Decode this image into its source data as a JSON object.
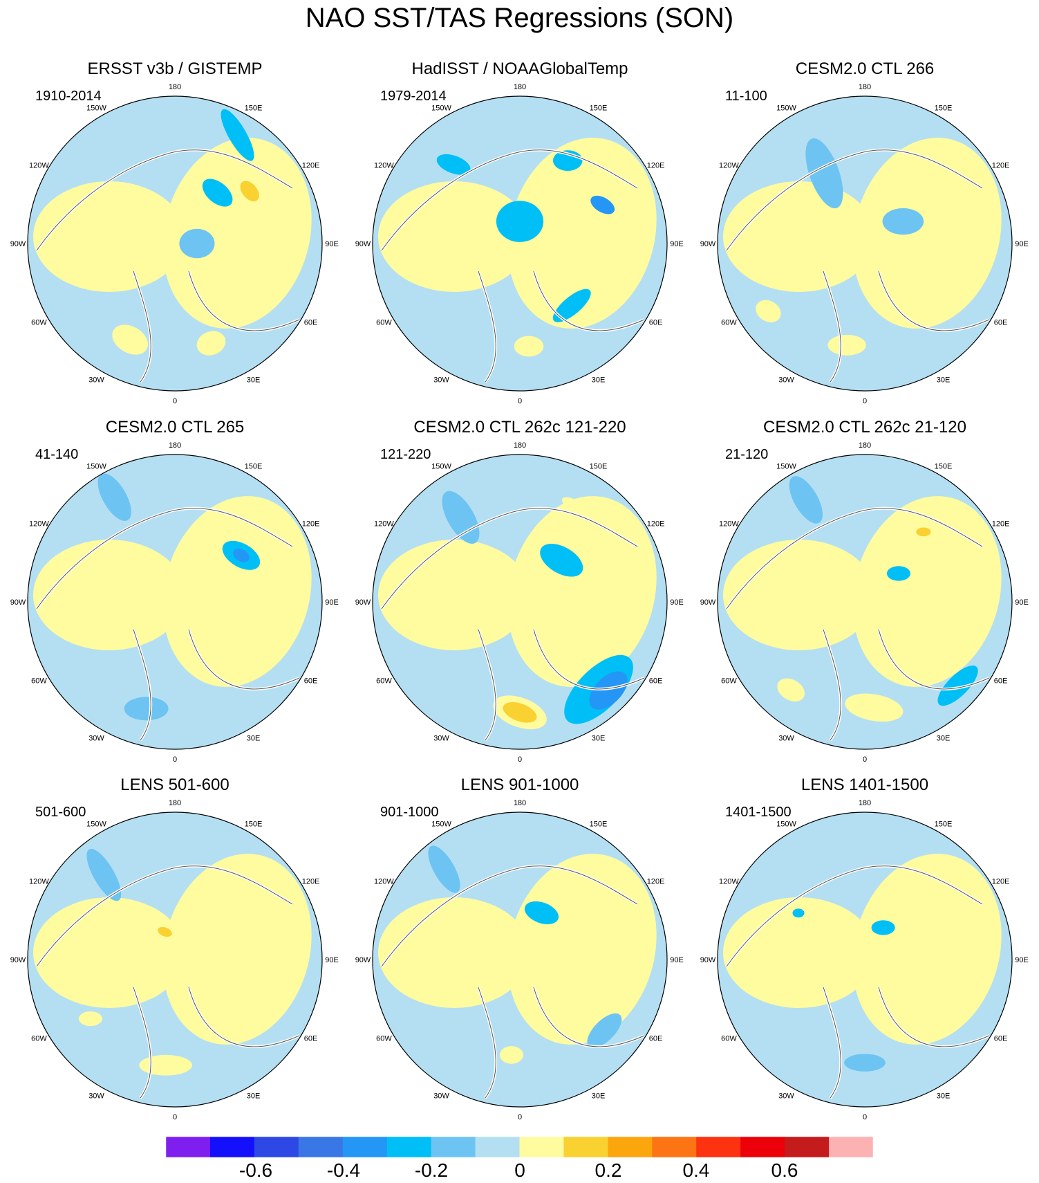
{
  "title": "NAO SST/TAS Regressions (SON)",
  "longitude_labels": [
    "180",
    "150E",
    "120E",
    "90E",
    "60E",
    "30E",
    "0",
    "30W",
    "60W",
    "90W",
    "120W",
    "150W"
  ],
  "panels": [
    {
      "title": "ERSST v3b / GISTEMP",
      "period": "1910-2014",
      "blobs": [
        {
          "r": 0.72,
          "angle": 155,
          "rx": 0.13,
          "ry": 0.09,
          "rot": 30,
          "level": 8
        },
        {
          "r": 0.72,
          "angle": 200,
          "rx": 0.1,
          "ry": 0.08,
          "rot": -20,
          "level": 8
        },
        {
          "r": 0.62,
          "angle": 305,
          "rx": 0.16,
          "ry": 0.1,
          "rot": 50,
          "level": 8
        },
        {
          "r": 0.62,
          "angle": 305,
          "rx": 0.08,
          "ry": 0.05,
          "rot": 50,
          "level": 9
        },
        {
          "r": 0.45,
          "angle": 320,
          "rx": 0.12,
          "ry": 0.07,
          "rot": 40,
          "level": 5
        },
        {
          "r": 0.85,
          "angle": 330,
          "rx": 0.2,
          "ry": 0.06,
          "rot": 60,
          "level": 5
        },
        {
          "r": 0.15,
          "angle": 270,
          "rx": 0.12,
          "ry": 0.1,
          "rot": 0,
          "level": 6
        }
      ]
    },
    {
      "title": "HadISST / NOAAGlobalTemp",
      "period": "1979-2014",
      "blobs": [
        {
          "r": 0.7,
          "angle": 185,
          "rx": 0.1,
          "ry": 0.07,
          "rot": 0,
          "level": 8
        },
        {
          "r": 0.55,
          "angle": 220,
          "rx": 0.16,
          "ry": 0.06,
          "rot": -40,
          "level": 5
        },
        {
          "r": 0.15,
          "angle": 0,
          "rx": 0.16,
          "ry": 0.14,
          "rot": 0,
          "level": 5
        },
        {
          "r": 0.62,
          "angle": 295,
          "rx": 0.09,
          "ry": 0.05,
          "rot": 30,
          "level": 4
        },
        {
          "r": 0.65,
          "angle": 330,
          "rx": 0.1,
          "ry": 0.07,
          "rot": 0,
          "level": 5
        },
        {
          "r": 0.7,
          "angle": 40,
          "rx": 0.12,
          "ry": 0.06,
          "rot": 20,
          "level": 5
        },
        {
          "r": 0.35,
          "angle": 60,
          "rx": 0.05,
          "ry": 0.04,
          "rot": 0,
          "level": 8
        }
      ]
    },
    {
      "title": "CESM2.0 CTL 266",
      "period": "11-100",
      "blobs": [
        {
          "r": 0.7,
          "angle": 170,
          "rx": 0.13,
          "ry": 0.07,
          "rot": 0,
          "level": 8
        },
        {
          "r": 0.8,
          "angle": 125,
          "rx": 0.09,
          "ry": 0.07,
          "rot": 30,
          "level": 8
        },
        {
          "r": 0.7,
          "angle": 300,
          "rx": 0.22,
          "ry": 0.07,
          "rot": 35,
          "level": 8
        },
        {
          "r": 0.3,
          "angle": 300,
          "rx": 0.14,
          "ry": 0.09,
          "rot": 0,
          "level": 6
        },
        {
          "r": 0.55,
          "angle": 30,
          "rx": 0.25,
          "ry": 0.1,
          "rot": 70,
          "level": 6
        }
      ]
    },
    {
      "title": "CESM2.0 CTL 265",
      "period": "41-140",
      "blobs": [
        {
          "r": 0.55,
          "angle": 305,
          "rx": 0.14,
          "ry": 0.08,
          "rot": 30,
          "level": 5
        },
        {
          "r": 0.55,
          "angle": 305,
          "rx": 0.06,
          "ry": 0.04,
          "rot": 30,
          "level": 4
        },
        {
          "r": 0.3,
          "angle": 340,
          "rx": 0.06,
          "ry": 0.05,
          "rot": 0,
          "level": 8
        },
        {
          "r": 0.68,
          "angle": 280,
          "rx": 0.05,
          "ry": 0.04,
          "rot": 0,
          "level": 8
        },
        {
          "r": 0.75,
          "angle": 165,
          "rx": 0.15,
          "ry": 0.08,
          "rot": 0,
          "level": 6
        },
        {
          "r": 0.82,
          "angle": 30,
          "rx": 0.18,
          "ry": 0.08,
          "rot": 60,
          "level": 6
        }
      ]
    },
    {
      "title": "CESM2.0 CTL 262c 121-220",
      "period": "121-220",
      "blobs": [
        {
          "r": 0.75,
          "angle": 180,
          "rx": 0.19,
          "ry": 0.1,
          "rot": 20,
          "level": 8
        },
        {
          "r": 0.75,
          "angle": 180,
          "rx": 0.12,
          "ry": 0.06,
          "rot": 20,
          "level": 9
        },
        {
          "r": 0.8,
          "angle": 222,
          "rx": 0.3,
          "ry": 0.14,
          "rot": -45,
          "level": 5
        },
        {
          "r": 0.85,
          "angle": 225,
          "rx": 0.16,
          "ry": 0.09,
          "rot": -45,
          "level": 4
        },
        {
          "r": 0.4,
          "angle": 315,
          "rx": 0.16,
          "ry": 0.09,
          "rot": 30,
          "level": 5
        },
        {
          "r": 0.45,
          "angle": 90,
          "rx": 0.06,
          "ry": 0.05,
          "rot": 0,
          "level": 8
        },
        {
          "r": 0.75,
          "angle": 330,
          "rx": 0.1,
          "ry": 0.04,
          "rot": 30,
          "level": 8
        },
        {
          "r": 0.7,
          "angle": 35,
          "rx": 0.2,
          "ry": 0.09,
          "rot": 60,
          "level": 6
        }
      ]
    },
    {
      "title": "CESM2.0 CTL 262c 21-120",
      "period": "21-120",
      "blobs": [
        {
          "r": 0.72,
          "angle": 185,
          "rx": 0.2,
          "ry": 0.09,
          "rot": 10,
          "level": 8
        },
        {
          "r": 0.78,
          "angle": 140,
          "rx": 0.1,
          "ry": 0.07,
          "rot": 30,
          "level": 8
        },
        {
          "r": 0.85,
          "angle": 228,
          "rx": 0.18,
          "ry": 0.07,
          "rot": -45,
          "level": 5
        },
        {
          "r": 0.62,
          "angle": 320,
          "rx": 0.12,
          "ry": 0.07,
          "rot": 0,
          "level": 8
        },
        {
          "r": 0.62,
          "angle": 320,
          "rx": 0.05,
          "ry": 0.03,
          "rot": 0,
          "level": 9
        },
        {
          "r": 0.38,
          "angle": 80,
          "rx": 0.06,
          "ry": 0.05,
          "rot": 0,
          "level": 8
        },
        {
          "r": 0.8,
          "angle": 30,
          "rx": 0.18,
          "ry": 0.08,
          "rot": 60,
          "level": 6
        },
        {
          "r": 0.3,
          "angle": 310,
          "rx": 0.08,
          "ry": 0.05,
          "rot": 0,
          "level": 5
        }
      ]
    },
    {
      "title": "LENS 501-600",
      "period": "501-600",
      "blobs": [
        {
          "r": 0.72,
          "angle": 175,
          "rx": 0.18,
          "ry": 0.07,
          "rot": 0,
          "level": 8
        },
        {
          "r": 0.2,
          "angle": 20,
          "rx": 0.1,
          "ry": 0.06,
          "rot": 20,
          "level": 8
        },
        {
          "r": 0.2,
          "angle": 20,
          "rx": 0.05,
          "ry": 0.03,
          "rot": 20,
          "level": 9
        },
        {
          "r": 0.62,
          "angle": 300,
          "rx": 0.1,
          "ry": 0.06,
          "rot": 40,
          "level": 8
        },
        {
          "r": 0.7,
          "angle": 125,
          "rx": 0.08,
          "ry": 0.05,
          "rot": 0,
          "level": 8
        },
        {
          "r": 0.75,
          "angle": 40,
          "rx": 0.2,
          "ry": 0.07,
          "rot": 60,
          "level": 6
        }
      ]
    },
    {
      "title": "LENS 901-1000",
      "period": "901-1000",
      "blobs": [
        {
          "r": 0.65,
          "angle": 175,
          "rx": 0.08,
          "ry": 0.06,
          "rot": 0,
          "level": 8
        },
        {
          "r": 0.6,
          "angle": 305,
          "rx": 0.09,
          "ry": 0.06,
          "rot": 40,
          "level": 8
        },
        {
          "r": 0.35,
          "angle": 335,
          "rx": 0.12,
          "ry": 0.07,
          "rot": 20,
          "level": 5
        },
        {
          "r": 0.75,
          "angle": 230,
          "rx": 0.15,
          "ry": 0.07,
          "rot": -45,
          "level": 6
        },
        {
          "r": 0.8,
          "angle": 40,
          "rx": 0.18,
          "ry": 0.07,
          "rot": 60,
          "level": 6
        }
      ]
    },
    {
      "title": "LENS 1401-1500",
      "period": "1401-1500",
      "blobs": [
        {
          "r": 0.7,
          "angle": 180,
          "rx": 0.14,
          "ry": 0.06,
          "rot": 0,
          "level": 6
        },
        {
          "r": 0.25,
          "angle": 330,
          "rx": 0.08,
          "ry": 0.05,
          "rot": 0,
          "level": 5
        },
        {
          "r": 0.55,
          "angle": 55,
          "rx": 0.04,
          "ry": 0.03,
          "rot": 0,
          "level": 5
        },
        {
          "r": 0.2,
          "angle": 40,
          "rx": 0.04,
          "ry": 0.03,
          "rot": 0,
          "level": 8
        }
      ]
    }
  ],
  "colorbar": {
    "colors": [
      "#7f1fef",
      "#1410fb",
      "#2d48e5",
      "#3a77e6",
      "#2496f5",
      "#00bff6",
      "#6dc4f2",
      "#b4dff2",
      "#fffb9f",
      "#f9d131",
      "#fba60d",
      "#fc7413",
      "#fc3210",
      "#ec0009",
      "#c41b1d",
      "#fcb1b3"
    ],
    "labels": [
      "-0.6",
      "-0.4",
      "-0.2",
      "0",
      "0.2",
      "0.4",
      "0.6"
    ]
  }
}
